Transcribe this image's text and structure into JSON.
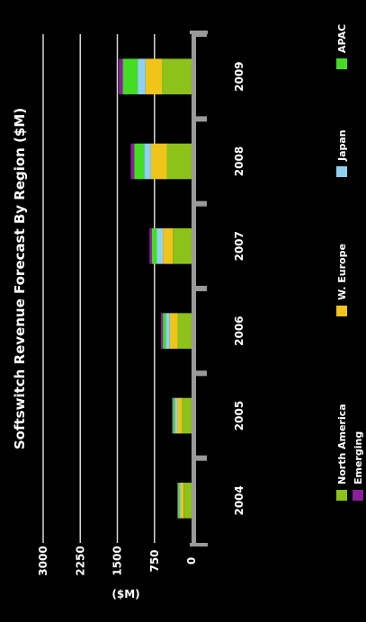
{
  "chart_data": {
    "type": "bar",
    "stacked": true,
    "orientation": "horizontal",
    "title": "Softswitch Revenue Forecast By Region ($M)",
    "ylabel": "($M)",
    "categories": [
      "2004",
      "2005",
      "2006",
      "2007",
      "2008",
      "2009"
    ],
    "xlim": [
      0,
      3000
    ],
    "ticks": [
      "3000",
      "2250",
      "1500",
      "750",
      "0"
    ],
    "grid": true,
    "legend_position": "bottom",
    "series": [
      {
        "name": "North America",
        "color": "#8cc21a",
        "values": [
          160,
          200,
          280,
          380,
          500,
          600
        ]
      },
      {
        "name": "W. Europe",
        "color": "#f0c419",
        "values": [
          60,
          90,
          160,
          200,
          320,
          330
        ]
      },
      {
        "name": "Japan",
        "color": "#8fd1f0",
        "values": [
          30,
          50,
          80,
          120,
          140,
          160
        ]
      },
      {
        "name": "APAC",
        "color": "#44dd22",
        "values": [
          30,
          40,
          60,
          100,
          200,
          300
        ]
      },
      {
        "name": "Emerging",
        "color": "#8a1f9a",
        "values": [
          10,
          20,
          40,
          50,
          70,
          80
        ]
      }
    ]
  }
}
